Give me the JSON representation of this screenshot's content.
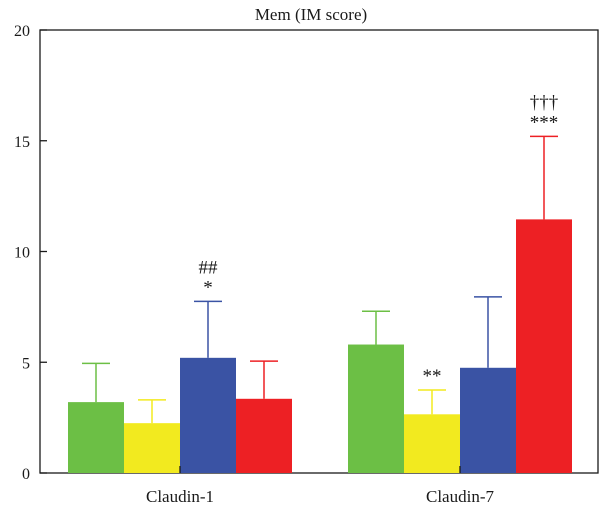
{
  "chart_data": {
    "type": "bar",
    "title": "Mem (IM score)",
    "xlabel": "",
    "ylabel": "",
    "ylim": [
      0,
      20
    ],
    "yticks": [
      "0",
      "5",
      "10",
      "15",
      "20"
    ],
    "categories": [
      "Claudin-1",
      "Claudin-7"
    ],
    "series": [
      {
        "color": "#6cbf45",
        "values": [
          3.2,
          5.8
        ],
        "errors": [
          1.75,
          1.5
        ]
      },
      {
        "color": "#f2ea1f",
        "values": [
          2.25,
          2.65
        ],
        "errors": [
          1.05,
          1.1
        ]
      },
      {
        "color": "#3a53a4",
        "values": [
          5.2,
          4.75
        ],
        "errors": [
          2.55,
          3.2
        ]
      },
      {
        "color": "#ed2024",
        "values": [
          3.35,
          11.45
        ],
        "errors": [
          1.7,
          3.75
        ]
      }
    ],
    "annotations": [
      {
        "category": 0,
        "series": 2,
        "lines": [
          "##",
          "*"
        ]
      },
      {
        "category": 1,
        "series": 1,
        "lines": [
          "**"
        ]
      },
      {
        "category": 1,
        "series": 3,
        "lines": [
          "†††",
          "***"
        ]
      }
    ],
    "grid": false,
    "legend": "none"
  }
}
